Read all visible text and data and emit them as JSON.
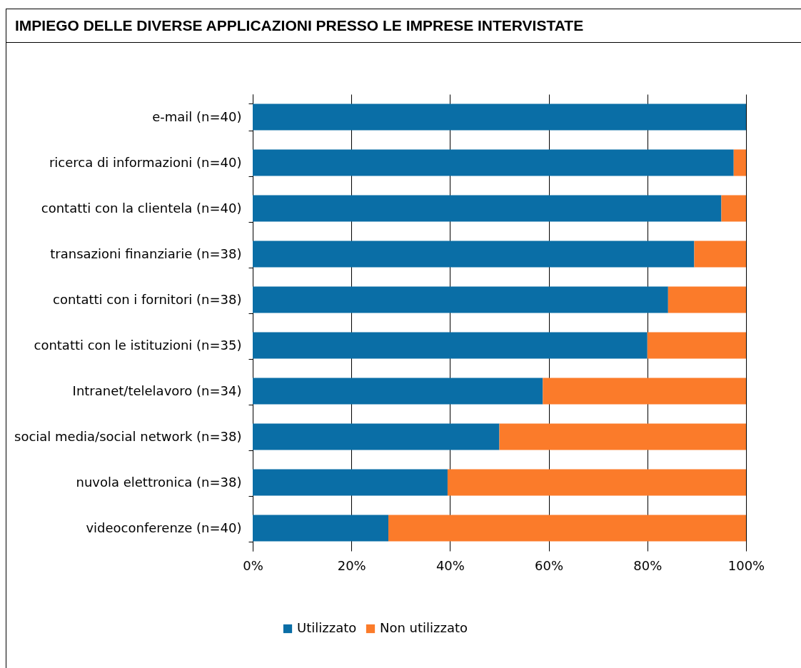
{
  "chart_data": {
    "type": "bar",
    "orientation": "horizontal",
    "stacked": true,
    "title": "IMPIEGO DELLE DIVERSE APPLICAZIONI PRESSO LE IMPRESE INTERVISTATE",
    "categories": [
      "e-mail (n=40)",
      "ricerca di informazioni (n=40)",
      "contatti con la clientela (n=40)",
      "transazioni finanziarie (n=38)",
      "contatti con i fornitori (n=38)",
      "contatti con le istituzioni (n=35)",
      "Intranet/telelavoro (n=34)",
      "social media/social network (n=38)",
      "nuvola elettronica (n=38)",
      "videoconferenze (n=40)"
    ],
    "series": [
      {
        "name": "Utilizzato",
        "color": "#0a6ea6",
        "values": [
          100,
          97.5,
          95,
          89.5,
          84.2,
          80,
          58.8,
          50,
          39.5,
          27.5
        ]
      },
      {
        "name": "Non utilizzato",
        "color": "#fb7b2a",
        "values": [
          0,
          2.5,
          5,
          10.5,
          15.8,
          20,
          41.2,
          50,
          60.5,
          72.5
        ]
      }
    ],
    "xlim": [
      0,
      100
    ],
    "xticks": [
      {
        "value": 0,
        "label": "0%"
      },
      {
        "value": 20,
        "label": "20%"
      },
      {
        "value": 40,
        "label": "40%"
      },
      {
        "value": 60,
        "label": "60%"
      },
      {
        "value": 80,
        "label": "80%"
      },
      {
        "value": 100,
        "label": "100%"
      }
    ],
    "grid": "x",
    "legend": "bottom"
  }
}
